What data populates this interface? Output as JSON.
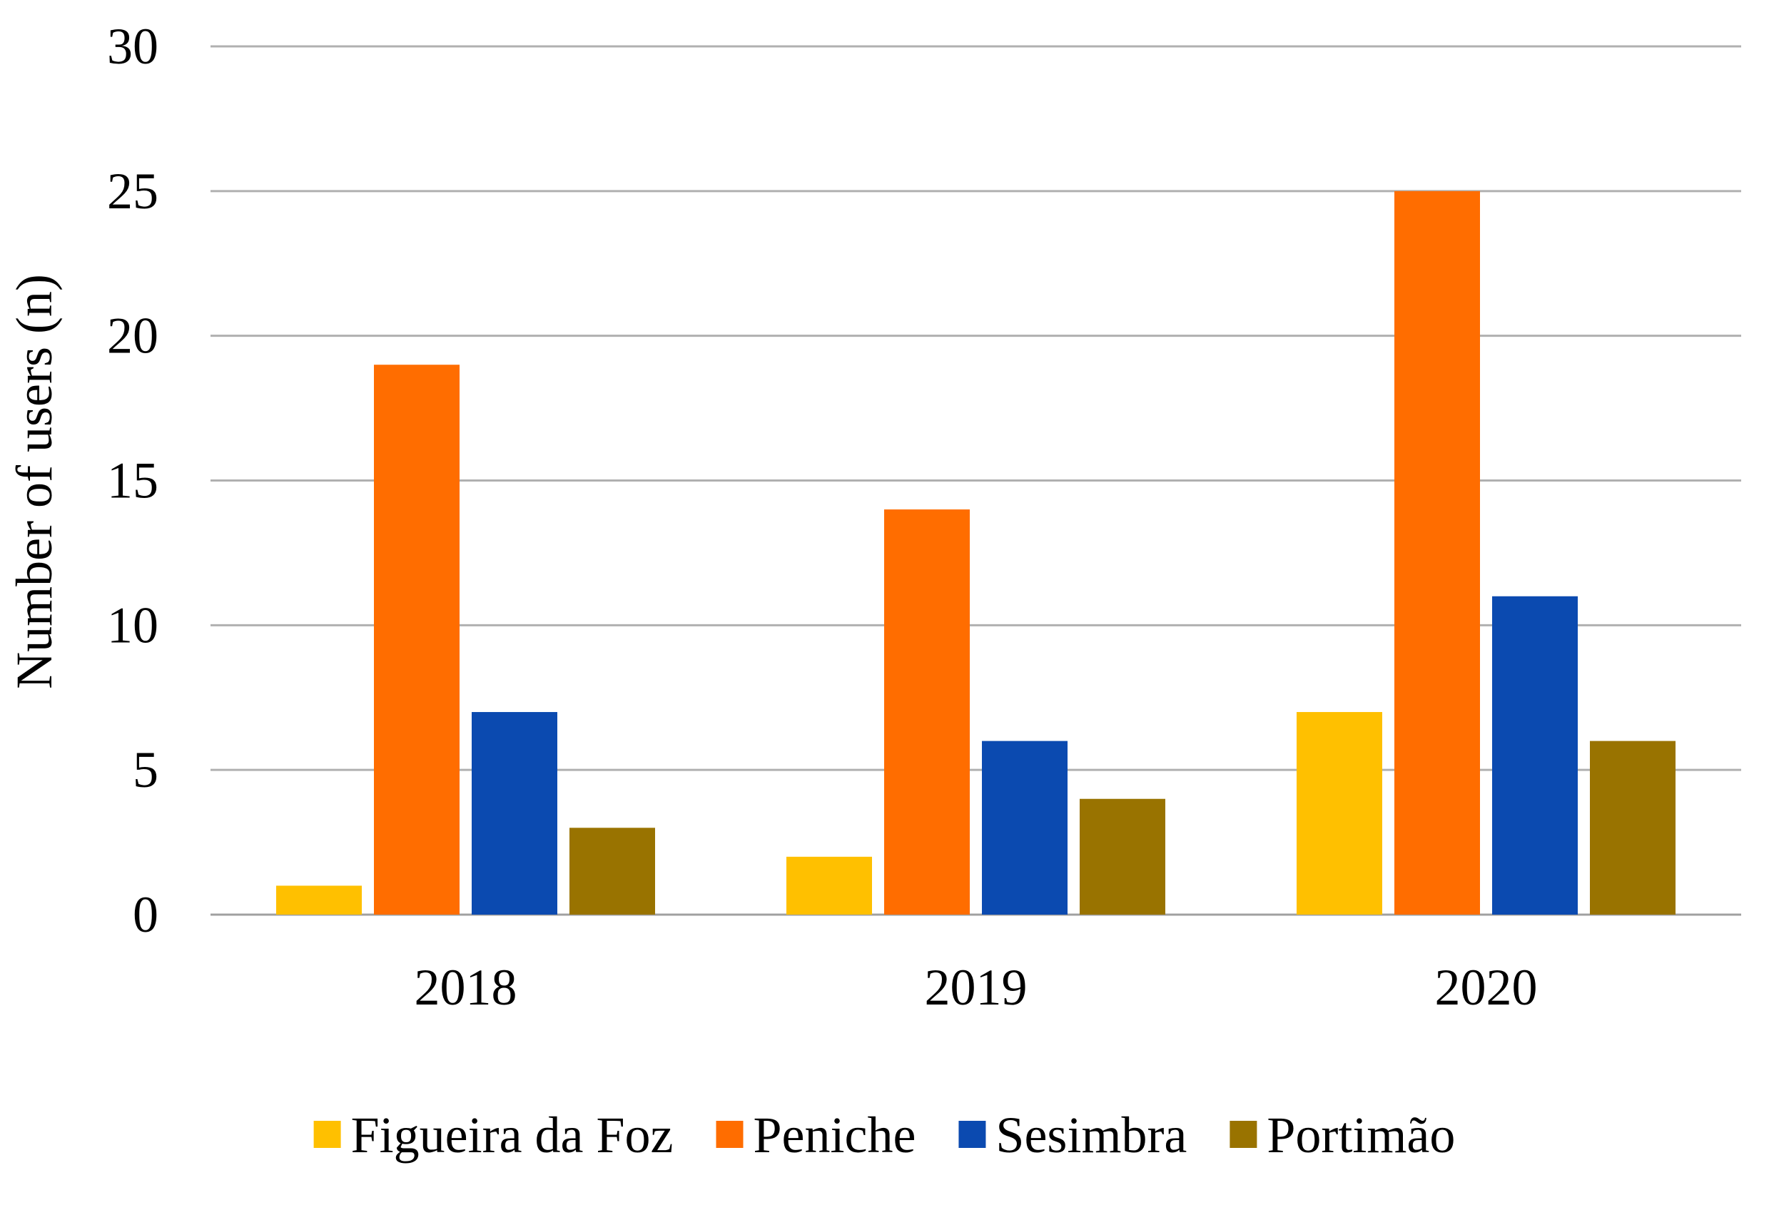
{
  "chart_data": {
    "type": "bar",
    "title": "",
    "xlabel": "",
    "ylabel": "Number of users (n)",
    "ylim": [
      0,
      30
    ],
    "yticks": [
      0,
      5,
      10,
      15,
      20,
      25,
      30
    ],
    "grid": true,
    "legend_position": "bottom",
    "categories": [
      "2018",
      "2019",
      "2020"
    ],
    "series": [
      {
        "name": "Figueira da Foz",
        "color": "#FFC000",
        "values": [
          1,
          2,
          7
        ]
      },
      {
        "name": "Peniche",
        "color": "#FF6D00",
        "values": [
          19,
          14,
          25
        ]
      },
      {
        "name": "Sesimbra",
        "color": "#0B4AB0",
        "values": [
          7,
          6,
          11
        ]
      },
      {
        "name": "Portimão",
        "color": "#997300",
        "values": [
          3,
          4,
          6
        ]
      }
    ]
  }
}
